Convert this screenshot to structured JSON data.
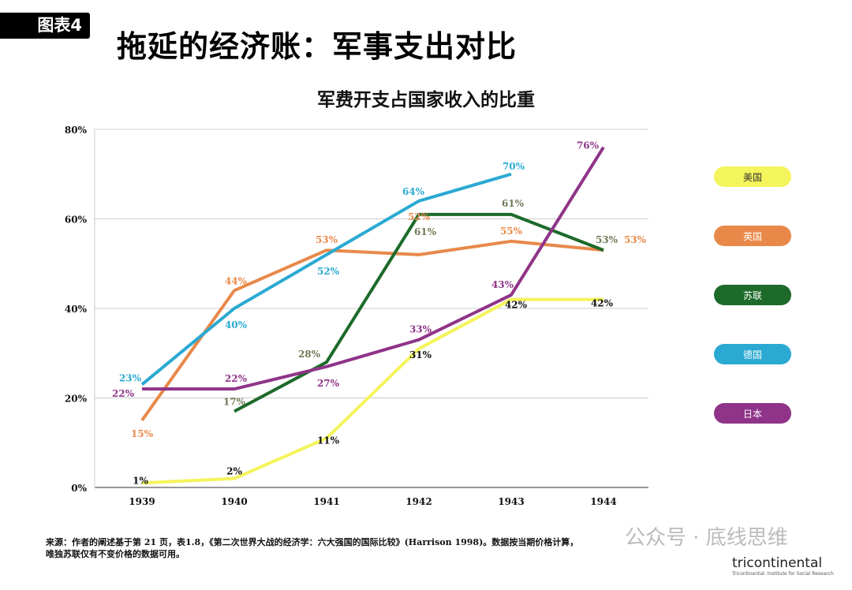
{
  "header": {
    "badge": "图表4",
    "title": "拖延的经济账：军事支出对比"
  },
  "chart_data": {
    "type": "line",
    "title": "军费开支占国家收入的比重",
    "xlabel": "",
    "ylabel": "",
    "x": [
      "1939",
      "1940",
      "1941",
      "1942",
      "1943",
      "1944"
    ],
    "yticks": [
      "0%",
      "20%",
      "40%",
      "60%",
      "80%"
    ],
    "ytick_values": [
      0,
      20,
      40,
      60,
      80
    ],
    "ylim": [
      0,
      80
    ],
    "grid": true,
    "legend_position": "right",
    "series": [
      {
        "name": "美国",
        "color": "#f4f45c",
        "label_color": "#111111",
        "values": [
          1,
          2,
          11,
          31,
          42,
          42
        ],
        "labels": [
          "1%",
          "2%",
          "11%",
          "31%",
          "42%",
          "42%"
        ]
      },
      {
        "name": "英国",
        "color": "#e8894a",
        "label_color": "#e8894a",
        "values": [
          15,
          44,
          53,
          52,
          55,
          53
        ],
        "labels": [
          "15%",
          "44%",
          "53%",
          "52%",
          "55%",
          "53%"
        ]
      },
      {
        "name": "苏联",
        "color": "#1d6a2a",
        "label_color": "#6e7a55",
        "values": [
          null,
          17,
          28,
          61,
          61,
          53
        ],
        "labels": [
          null,
          "17%",
          "28%",
          "61%",
          "61%",
          "53%"
        ]
      },
      {
        "name": "德国",
        "color": "#2aa9d2",
        "label_color": "#2aa9d2",
        "values": [
          23,
          40,
          52,
          64,
          70,
          null
        ],
        "labels": [
          "23%",
          "40%",
          "52%",
          "64%",
          "70%",
          null
        ]
      },
      {
        "name": "日本",
        "color": "#8f3488",
        "label_color": "#8f3488",
        "values": [
          22,
          22,
          27,
          33,
          43,
          76
        ],
        "labels": [
          "22%",
          "22%",
          "27%",
          "33%",
          "43%",
          "76%"
        ]
      }
    ]
  },
  "footer": {
    "line1": "来源：作者的阐述基于第 21 页，表1.8，《第二次世界大战的经济学：六大强国的国际比较》(Harrison 1998)。数据按当期价格计算，",
    "line2": "唯独苏联仅有不变价格的数据可用。"
  },
  "watermark": "公众号 · 底线思维",
  "logo": {
    "name": "tricontinental",
    "sub": "Tricontinental: Institute for Social Research"
  }
}
